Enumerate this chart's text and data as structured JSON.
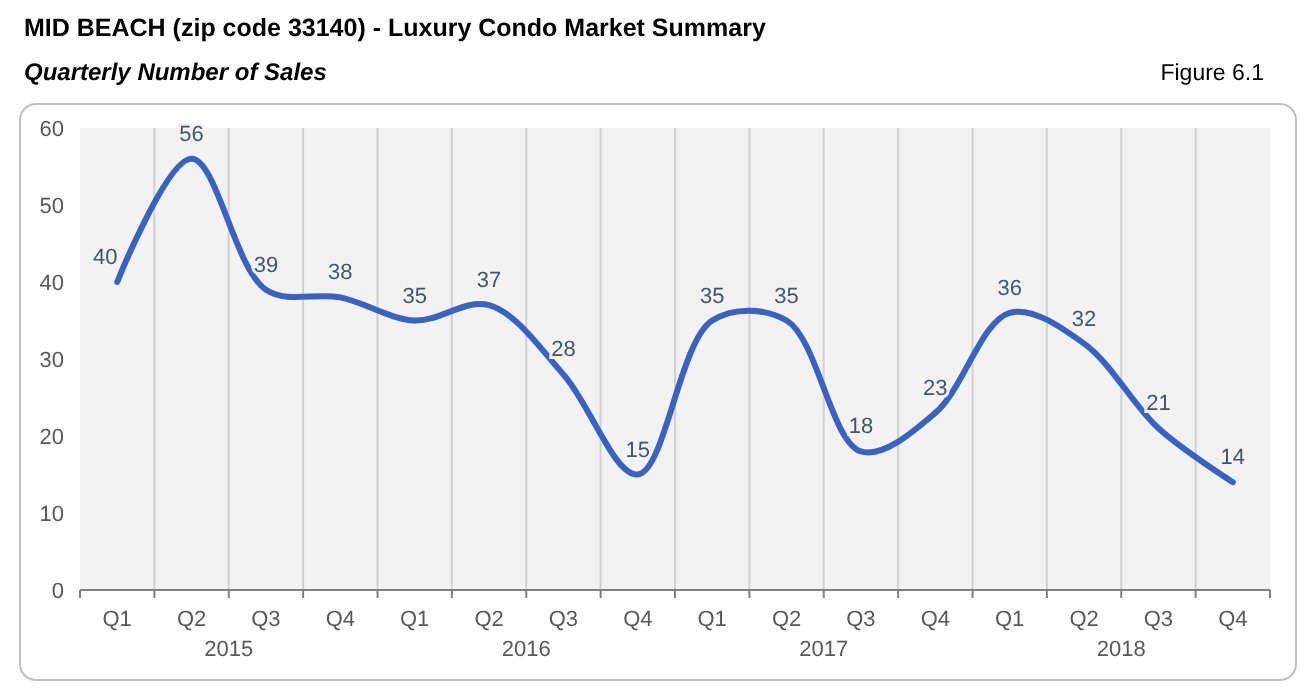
{
  "chart_data": {
    "type": "line",
    "title": "MID BEACH (zip code 33140) - Luxury Condo Market Summary",
    "subtitle": "Quarterly Number of Sales",
    "annotations": [
      "Figure 6.1",
      "2015",
      "2016",
      "2017",
      "2018"
    ],
    "categories": [
      "Q1",
      "Q2",
      "Q3",
      "Q4",
      "Q1",
      "Q2",
      "Q3",
      "Q4",
      "Q1",
      "Q2",
      "Q3",
      "Q4",
      "Q1",
      "Q2",
      "Q3",
      "Q4"
    ],
    "series": [
      {
        "color": "#3a62c0",
        "values": [
          40,
          56,
          39,
          38,
          35,
          37,
          28,
          15,
          35,
          35,
          18,
          23,
          36,
          32,
          21,
          14
        ]
      }
    ],
    "ylim": [
      0,
      60
    ],
    "yticks": [
      0,
      10,
      20,
      30,
      40,
      50,
      60
    ],
    "grid": "x",
    "data_labels": true,
    "marker": "none",
    "line_style": "solid"
  }
}
